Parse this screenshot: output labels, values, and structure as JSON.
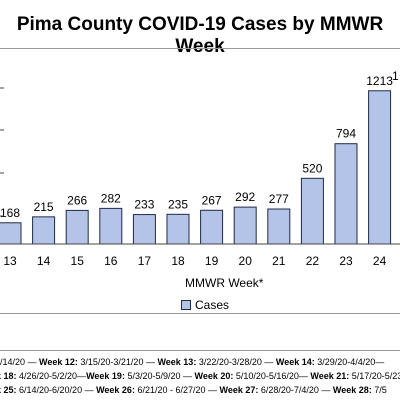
{
  "chart_data": {
    "type": "bar",
    "title": "Pima County COVID-19 Cases by MMWR Week",
    "xlabel": "MMWR Week*",
    "ylabel": "",
    "categories": [
      "13",
      "14",
      "15",
      "16",
      "17",
      "18",
      "19",
      "20",
      "21",
      "22",
      "23",
      "24"
    ],
    "series": [
      {
        "name": "Cases",
        "values": [
          168,
          215,
          266,
          282,
          233,
          235,
          267,
          292,
          277,
          520,
          794,
          1213
        ]
      }
    ],
    "partial_next_bar_label": "1",
    "ylim": [
      0,
      1900
    ],
    "grid": false,
    "legend": "bottom-center",
    "colors": {
      "bar_fill": "#b4c4e8",
      "bar_stroke": "#1f2a44"
    }
  },
  "week_notes": [
    {
      "segments": [
        {
          "wk": "",
          "range": "/14/20 — "
        },
        {
          "wk": "Week 12:",
          "range": " 3/15/20-3/21/20 — "
        },
        {
          "wk": "Week 13:",
          "range": " 3/22/20-3/28/20 — "
        },
        {
          "wk": "Week 14:",
          "range": " 3/29/20-4/4/20— "
        }
      ]
    },
    {
      "segments": [
        {
          "wk": "k 18:",
          "range": " 4/26/20-5/2/20—"
        },
        {
          "wk": "Week 19:",
          "range": " 5/3/20-5/9/20 — "
        },
        {
          "wk": "Week 20:",
          "range": " 5/10/20-5/16/20— "
        },
        {
          "wk": "Week 21:",
          "range": " 5/17/20-5/23"
        }
      ]
    },
    {
      "segments": [
        {
          "wk": "k 25:",
          "range": " 6/14/20-6/20/20 — "
        },
        {
          "wk": "Week 26:",
          "range": " 6/21/20 - 6/27/20 — "
        },
        {
          "wk": "Week 27:",
          "range": " 6/28/20-7/4/20 — "
        },
        {
          "wk": "Week 28:",
          "range": " 7/5"
        }
      ]
    }
  ]
}
